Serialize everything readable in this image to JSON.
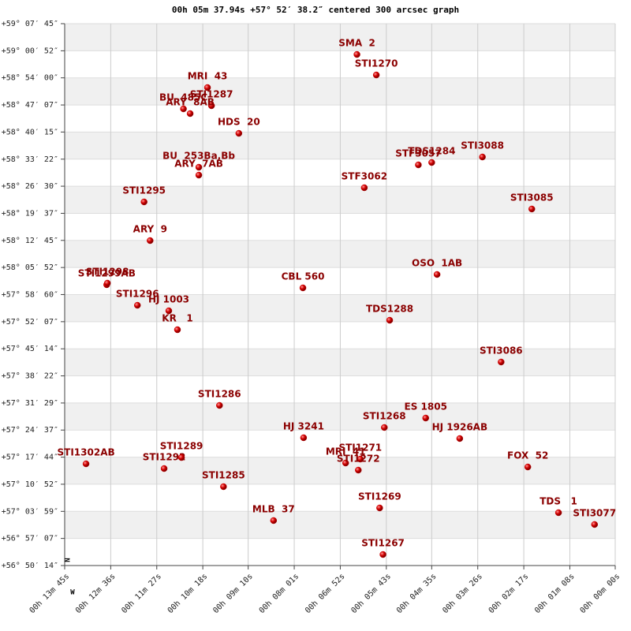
{
  "chart_data": {
    "type": "scatter",
    "title": "00h 05m 37.94s +57° 52′ 38.2″ centered 300 arcsec graph",
    "north_label": "N",
    "west_label": "W",
    "color": "#cc0000",
    "label_color": "#8b0000",
    "grid": true,
    "bands": true,
    "xlim": [
      825,
      0
    ],
    "xticks": [
      {
        "value": 825,
        "label": "00h 13m 45s"
      },
      {
        "value": 756,
        "label": "00h 12m 36s"
      },
      {
        "value": 687,
        "label": "00h 11m 27s"
      },
      {
        "value": 618,
        "label": "00h 10m 18s"
      },
      {
        "value": 550,
        "label": "00h 09m 10s"
      },
      {
        "value": 481,
        "label": "00h 08m 01s"
      },
      {
        "value": 412,
        "label": "00h 06m 52s"
      },
      {
        "value": 343,
        "label": "00h 05m 43s"
      },
      {
        "value": 275,
        "label": "00h 04m 35s"
      },
      {
        "value": 206,
        "label": "00h 03m 26s"
      },
      {
        "value": 137,
        "label": "00h 02m 17s"
      },
      {
        "value": 68,
        "label": "00h 01m 08s"
      },
      {
        "value": 0,
        "label": "00h 00m 00s"
      }
    ],
    "ylim": [
      204614,
      212865
    ],
    "yticks": [
      {
        "value": 212865,
        "label": "+59° 07′ 45″"
      },
      {
        "value": 212452,
        "label": "+59° 00′ 52″"
      },
      {
        "value": 212040,
        "label": "+58° 54′ 00″"
      },
      {
        "value": 211627,
        "label": "+58° 47′ 07″"
      },
      {
        "value": 211215,
        "label": "+58° 40′ 15″"
      },
      {
        "value": 210802,
        "label": "+58° 33′ 22″"
      },
      {
        "value": 210390,
        "label": "+58° 26′ 30″"
      },
      {
        "value": 209977,
        "label": "+58° 19′ 37″"
      },
      {
        "value": 209565,
        "label": "+58° 12′ 45″"
      },
      {
        "value": 209152,
        "label": "+58° 05′ 52″"
      },
      {
        "value": 208740,
        "label": "+57° 58′ 60″"
      },
      {
        "value": 208327,
        "label": "+57° 52′ 07″"
      },
      {
        "value": 207914,
        "label": "+57° 45′ 14″"
      },
      {
        "value": 207502,
        "label": "+57° 38′ 22″"
      },
      {
        "value": 207089,
        "label": "+57° 31′ 29″"
      },
      {
        "value": 206677,
        "label": "+57° 24′ 37″"
      },
      {
        "value": 206264,
        "label": "+57° 17′ 44″"
      },
      {
        "value": 205852,
        "label": "+57° 10′ 52″"
      },
      {
        "value": 205439,
        "label": "+57° 03′ 59″"
      },
      {
        "value": 205027,
        "label": "+56° 57′ 07″"
      },
      {
        "value": 204614,
        "label": "+56° 50′ 14″"
      }
    ],
    "labels": [
      "SMA  2",
      "STI1270",
      "MRI  43",
      "STI1287",
      "BU  485C",
      "ARY  8AB",
      "HDS  20",
      "BU  253Ba,Bb",
      "ARY  7AB",
      "TDS1284",
      "STF3057",
      "STI3088",
      "STF3062",
      "STI3085",
      "STI1295",
      "ARY  9",
      "OSO  1AB",
      "STI1299AB",
      "STI1298",
      "CBL 560",
      "STI1296",
      "HJ 1003",
      "KR   1",
      "TDS1288",
      "STI3086",
      "STI1286",
      "ES 1805",
      "STI1268",
      "HJ 3241",
      "HJ 1926AB",
      "STI1271",
      "MRI  41",
      "STI1272",
      "STI1302AB",
      "STI1292",
      "STI1289",
      "FOX  52",
      "STI1285",
      "STI1269",
      "MLB  37",
      "TDS   1",
      "STI3077",
      "STI1267"
    ],
    "x": [
      387,
      358,
      611,
      605,
      647,
      637,
      564,
      624,
      624,
      275,
      295,
      199,
      376,
      125,
      706,
      697,
      267,
      762,
      761,
      468,
      716,
      669,
      656,
      338,
      171,
      593,
      284,
      346,
      467,
      233,
      382,
      404,
      385,
      793,
      676,
      650,
      131,
      587,
      353,
      512,
      85,
      31,
      348
    ],
    "values": [
      212396,
      212084,
      211892,
      211616,
      211568,
      211496,
      211195,
      210679,
      210559,
      210751,
      210715,
      210835,
      210367,
      210043,
      210151,
      209562,
      209046,
      208890,
      208914,
      208842,
      208577,
      208493,
      208205,
      208349,
      207713,
      207052,
      206860,
      206716,
      206560,
      206548,
      206235,
      206175,
      206067,
      206163,
      206091,
      206259,
      206115,
      205815,
      205491,
      205299,
      205419,
      205239,
      204782
    ]
  }
}
